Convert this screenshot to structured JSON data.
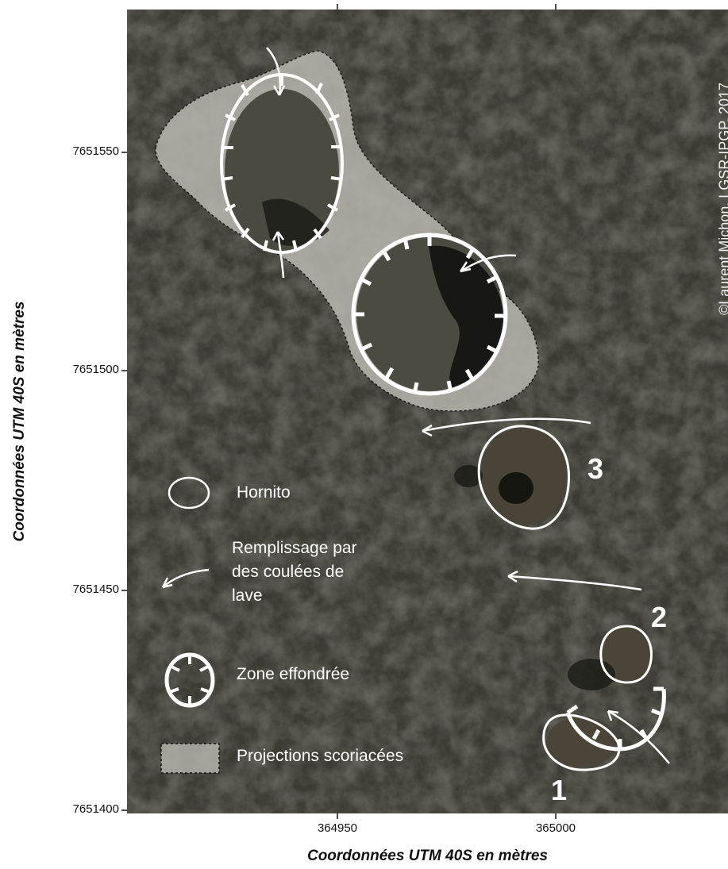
{
  "axes": {
    "x_title": "Coordonnées UTM 40S  en mètres",
    "y_title": "Coordonnées UTM 40S  en mètres",
    "x_ticks": [
      "364950",
      "365000"
    ],
    "y_ticks": [
      "7651550",
      "7651500",
      "7651450",
      "7651400"
    ]
  },
  "credit": "©Laurent Michon, LGSR-IPGP, 2017",
  "legend": {
    "hornito": "Hornito",
    "fill_line1": "Remplissage par",
    "fill_line2": "des coulées de",
    "fill_line3": "lave",
    "collapse": "Zone effondrée",
    "projections": "Projections scoriacées"
  },
  "labels": {
    "one": "1",
    "two": "2",
    "three": "3"
  },
  "colors": {
    "lava": "#3a3a33",
    "projections": "#b9b6ae",
    "annotation": "#ffffff"
  }
}
